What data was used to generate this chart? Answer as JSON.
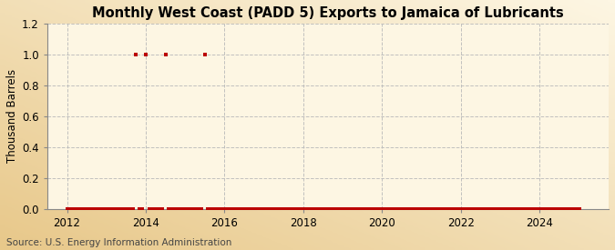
{
  "title": "Monthly West Coast (PADD 5) Exports to Jamaica of Lubricants",
  "ylabel": "Thousand Barrels",
  "source": "Source: U.S. Energy Information Administration",
  "bg_color_center": "#fdf6e3",
  "bg_color_edge": "#e8c88a",
  "marker_color": "#bb0000",
  "grid_color": "#bbbbbb",
  "spine_color": "#888888",
  "xlim_start": 2011.5,
  "xlim_end": 2025.75,
  "ylim": [
    0.0,
    1.2
  ],
  "yticks": [
    0.0,
    0.2,
    0.4,
    0.6,
    0.8,
    1.0,
    1.2
  ],
  "xticks": [
    2012,
    2014,
    2016,
    2018,
    2020,
    2022,
    2024
  ],
  "title_fontsize": 10.5,
  "tick_fontsize": 8.5,
  "ylabel_fontsize": 8.5,
  "source_fontsize": 7.5,
  "data_points": [
    [
      2012.0,
      0.0
    ],
    [
      2012.083,
      0.0
    ],
    [
      2012.167,
      0.0
    ],
    [
      2012.25,
      0.0
    ],
    [
      2012.333,
      0.0
    ],
    [
      2012.417,
      0.0
    ],
    [
      2012.5,
      0.0
    ],
    [
      2012.583,
      0.0
    ],
    [
      2012.667,
      0.0
    ],
    [
      2012.75,
      0.0
    ],
    [
      2012.833,
      0.0
    ],
    [
      2012.917,
      0.0
    ],
    [
      2013.0,
      0.0
    ],
    [
      2013.083,
      0.0
    ],
    [
      2013.167,
      0.0
    ],
    [
      2013.25,
      0.0
    ],
    [
      2013.333,
      0.0
    ],
    [
      2013.417,
      0.0
    ],
    [
      2013.5,
      0.0
    ],
    [
      2013.583,
      0.0
    ],
    [
      2013.667,
      0.0
    ],
    [
      2013.75,
      1.0
    ],
    [
      2013.833,
      0.0
    ],
    [
      2013.917,
      0.0
    ],
    [
      2014.0,
      1.0
    ],
    [
      2014.083,
      0.0
    ],
    [
      2014.167,
      0.0
    ],
    [
      2014.25,
      0.0
    ],
    [
      2014.333,
      0.0
    ],
    [
      2014.417,
      0.0
    ],
    [
      2014.5,
      1.0
    ],
    [
      2014.583,
      0.0
    ],
    [
      2014.667,
      0.0
    ],
    [
      2014.75,
      0.0
    ],
    [
      2014.833,
      0.0
    ],
    [
      2014.917,
      0.0
    ],
    [
      2015.0,
      0.0
    ],
    [
      2015.083,
      0.0
    ],
    [
      2015.167,
      0.0
    ],
    [
      2015.25,
      0.0
    ],
    [
      2015.333,
      0.0
    ],
    [
      2015.417,
      0.0
    ],
    [
      2015.5,
      1.0
    ],
    [
      2015.583,
      0.0
    ],
    [
      2015.667,
      0.0
    ],
    [
      2015.75,
      0.0
    ],
    [
      2015.833,
      0.0
    ],
    [
      2015.917,
      0.0
    ],
    [
      2016.0,
      0.0
    ],
    [
      2016.083,
      0.0
    ],
    [
      2016.167,
      0.0
    ],
    [
      2016.25,
      0.0
    ],
    [
      2016.333,
      0.0
    ],
    [
      2016.417,
      0.0
    ],
    [
      2016.5,
      0.0
    ],
    [
      2016.583,
      0.0
    ],
    [
      2016.667,
      0.0
    ],
    [
      2016.75,
      0.0
    ],
    [
      2016.833,
      0.0
    ],
    [
      2016.917,
      0.0
    ],
    [
      2017.0,
      0.0
    ],
    [
      2017.083,
      0.0
    ],
    [
      2017.167,
      0.0
    ],
    [
      2017.25,
      0.0
    ],
    [
      2017.333,
      0.0
    ],
    [
      2017.417,
      0.0
    ],
    [
      2017.5,
      0.0
    ],
    [
      2017.583,
      0.0
    ],
    [
      2017.667,
      0.0
    ],
    [
      2017.75,
      0.0
    ],
    [
      2017.833,
      0.0
    ],
    [
      2017.917,
      0.0
    ],
    [
      2018.0,
      0.0
    ],
    [
      2018.083,
      0.0
    ],
    [
      2018.167,
      0.0
    ],
    [
      2018.25,
      0.0
    ],
    [
      2018.333,
      0.0
    ],
    [
      2018.417,
      0.0
    ],
    [
      2018.5,
      0.0
    ],
    [
      2018.583,
      0.0
    ],
    [
      2018.667,
      0.0
    ],
    [
      2018.75,
      0.0
    ],
    [
      2018.833,
      0.0
    ],
    [
      2018.917,
      0.0
    ],
    [
      2019.0,
      0.0
    ],
    [
      2019.083,
      0.0
    ],
    [
      2019.167,
      0.0
    ],
    [
      2019.25,
      0.0
    ],
    [
      2019.333,
      0.0
    ],
    [
      2019.417,
      0.0
    ],
    [
      2019.5,
      0.0
    ],
    [
      2019.583,
      0.0
    ],
    [
      2019.667,
      0.0
    ],
    [
      2019.75,
      0.0
    ],
    [
      2019.833,
      0.0
    ],
    [
      2019.917,
      0.0
    ],
    [
      2020.0,
      0.0
    ],
    [
      2020.083,
      0.0
    ],
    [
      2020.167,
      0.0
    ],
    [
      2020.25,
      0.0
    ],
    [
      2020.333,
      0.0
    ],
    [
      2020.417,
      0.0
    ],
    [
      2020.5,
      0.0
    ],
    [
      2020.583,
      0.0
    ],
    [
      2020.667,
      0.0
    ],
    [
      2020.75,
      0.0
    ],
    [
      2020.833,
      0.0
    ],
    [
      2020.917,
      0.0
    ],
    [
      2021.0,
      0.0
    ],
    [
      2021.083,
      0.0
    ],
    [
      2021.167,
      0.0
    ],
    [
      2021.25,
      0.0
    ],
    [
      2021.333,
      0.0
    ],
    [
      2021.417,
      0.0
    ],
    [
      2021.5,
      0.0
    ],
    [
      2021.583,
      0.0
    ],
    [
      2021.667,
      0.0
    ],
    [
      2021.75,
      0.0
    ],
    [
      2021.833,
      0.0
    ],
    [
      2021.917,
      0.0
    ],
    [
      2022.0,
      0.0
    ],
    [
      2022.083,
      0.0
    ],
    [
      2022.167,
      0.0
    ],
    [
      2022.25,
      0.0
    ],
    [
      2022.333,
      0.0
    ],
    [
      2022.417,
      0.0
    ],
    [
      2022.5,
      0.0
    ],
    [
      2022.583,
      0.0
    ],
    [
      2022.667,
      0.0
    ],
    [
      2022.75,
      0.0
    ],
    [
      2022.833,
      0.0
    ],
    [
      2022.917,
      0.0
    ],
    [
      2023.0,
      0.0
    ],
    [
      2023.083,
      0.0
    ],
    [
      2023.167,
      0.0
    ],
    [
      2023.25,
      0.0
    ],
    [
      2023.333,
      0.0
    ],
    [
      2023.417,
      0.0
    ],
    [
      2023.5,
      0.0
    ],
    [
      2023.583,
      0.0
    ],
    [
      2023.667,
      0.0
    ],
    [
      2023.75,
      0.0
    ],
    [
      2023.833,
      0.0
    ],
    [
      2023.917,
      0.0
    ],
    [
      2024.0,
      0.0
    ],
    [
      2024.083,
      0.0
    ],
    [
      2024.167,
      0.0
    ],
    [
      2024.25,
      0.0
    ],
    [
      2024.333,
      0.0
    ],
    [
      2024.417,
      0.0
    ],
    [
      2024.5,
      0.0
    ],
    [
      2024.583,
      0.0
    ],
    [
      2024.667,
      0.0
    ],
    [
      2024.75,
      0.0
    ],
    [
      2024.833,
      0.0
    ],
    [
      2024.917,
      0.0
    ],
    [
      2025.0,
      0.0
    ]
  ]
}
